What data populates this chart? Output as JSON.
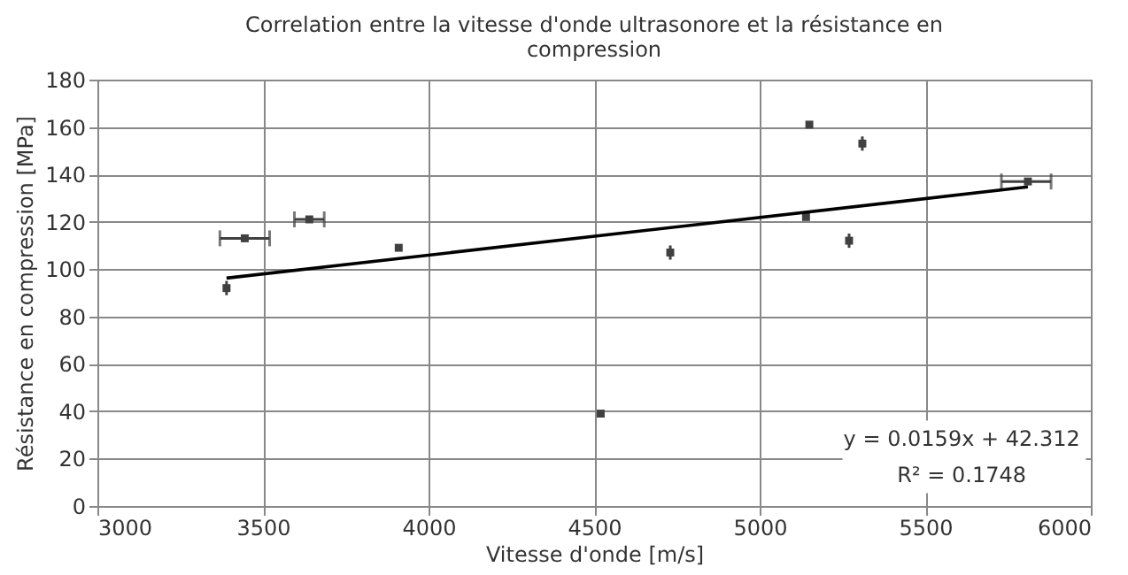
{
  "chart_data": {
    "type": "scatter",
    "title": [
      "Correlation entre la vitesse d'onde ultrasonore et la résistance en",
      "compression"
    ],
    "xlabel": "Vitesse d'onde [m/s]",
    "ylabel": "Résistance en compression [MPa]",
    "xlim": [
      3000,
      6000
    ],
    "xticks": [
      3000,
      3500,
      4000,
      4500,
      5000,
      5500,
      6000
    ],
    "ylim": [
      0,
      180
    ],
    "yticks": [
      0,
      20,
      40,
      60,
      80,
      100,
      120,
      140,
      160,
      180
    ],
    "grid": true,
    "series": [
      {
        "marker": "square",
        "color": "#404040",
        "x": [
          3390,
          3445,
          3640,
          3910,
          4520,
          4730,
          5140,
          5150,
          5270,
          5310,
          5810
        ],
        "values": [
          92,
          113,
          121,
          109,
          39,
          107,
          122,
          161,
          112,
          153,
          137
        ],
        "errors": [
          3,
          null,
          null,
          null,
          null,
          3,
          null,
          null,
          3,
          3,
          null
        ],
        "xerrors": [
          null,
          75,
          45,
          null,
          null,
          null,
          null,
          null,
          null,
          null,
          [
            5730,
            5880
          ]
        ]
      },
      {
        "type": "line",
        "marker": "none",
        "color": "#000000",
        "x": [
          3390,
          5810
        ],
        "values": [
          96.2,
          134.7
        ]
      }
    ],
    "annotations": [
      "y = 0.0159x + 42.312",
      "R² = 0.1748"
    ]
  }
}
